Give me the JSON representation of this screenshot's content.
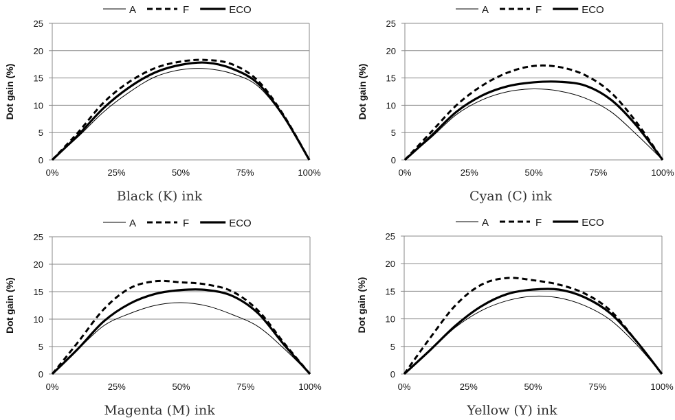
{
  "chart_data": [
    {
      "type": "line",
      "title": "Black (K) ink",
      "xlabel": "",
      "ylabel": "Dot gain (%)",
      "ylim": [
        0,
        25
      ],
      "yticks": [
        "0",
        "5",
        "10",
        "15",
        "20",
        "25"
      ],
      "xticks": [
        "0%",
        "25%",
        "50%",
        "75%",
        "100%"
      ],
      "x": [
        0,
        10,
        20,
        30,
        40,
        50,
        60,
        70,
        80,
        90,
        100
      ],
      "grid": true,
      "legend_position": "top-center",
      "series": [
        {
          "name": "A",
          "values": [
            0,
            4.2,
            8.8,
            12.4,
            15.2,
            16.5,
            16.7,
            15.8,
            13.5,
            7.8,
            0
          ]
        },
        {
          "name": "F",
          "values": [
            0,
            5.0,
            10.5,
            14.3,
            16.8,
            18.0,
            18.3,
            17.5,
            14.5,
            8.2,
            0
          ]
        },
        {
          "name": "ECO",
          "values": [
            0,
            4.5,
            9.5,
            13.3,
            16.0,
            17.4,
            17.8,
            16.7,
            14.0,
            8.0,
            0
          ]
        }
      ]
    },
    {
      "type": "line",
      "title": "Cyan (C) ink",
      "xlabel": "",
      "ylabel": "Dot gain (%)",
      "ylim": [
        0,
        25
      ],
      "yticks": [
        "0",
        "5",
        "10",
        "15",
        "20",
        "25"
      ],
      "xticks": [
        "0%",
        "25%",
        "50%",
        "75%",
        "100%"
      ],
      "x": [
        0,
        10,
        20,
        30,
        40,
        50,
        60,
        70,
        80,
        90,
        100
      ],
      "grid": true,
      "legend_position": "top-center",
      "series": [
        {
          "name": "A",
          "values": [
            0,
            4.0,
            8.3,
            11.0,
            12.5,
            13.0,
            12.6,
            11.3,
            8.8,
            4.6,
            0
          ]
        },
        {
          "name": "F",
          "values": [
            0,
            5.0,
            10.0,
            13.6,
            16.0,
            17.2,
            17.0,
            15.5,
            12.3,
            6.8,
            0
          ]
        },
        {
          "name": "ECO",
          "values": [
            0,
            4.3,
            8.8,
            11.8,
            13.5,
            14.2,
            14.3,
            13.6,
            11.0,
            6.2,
            0
          ]
        }
      ]
    },
    {
      "type": "line",
      "title": "Magenta (M) ink",
      "xlabel": "",
      "ylabel": "Dot gain (%)",
      "ylim": [
        0,
        25
      ],
      "yticks": [
        "0",
        "5",
        "10",
        "15",
        "20",
        "25"
      ],
      "xticks": [
        "0%",
        "25%",
        "50%",
        "75%",
        "100%"
      ],
      "x": [
        0,
        10,
        20,
        30,
        40,
        50,
        60,
        70,
        80,
        90,
        100
      ],
      "grid": true,
      "legend_position": "top-center",
      "series": [
        {
          "name": "A",
          "values": [
            0,
            4.5,
            8.8,
            11.0,
            12.5,
            13.0,
            12.4,
            10.8,
            8.6,
            4.6,
            0
          ]
        },
        {
          "name": "F",
          "values": [
            0,
            5.8,
            11.8,
            15.6,
            16.9,
            16.7,
            16.3,
            15.0,
            11.5,
            5.6,
            0
          ]
        },
        {
          "name": "ECO",
          "values": [
            0,
            4.6,
            9.6,
            12.8,
            14.6,
            15.3,
            15.3,
            14.2,
            11.0,
            5.3,
            0
          ]
        }
      ]
    },
    {
      "type": "line",
      "title": "Yellow (Y) ink",
      "xlabel": "",
      "ylabel": "Dot gain (%)",
      "ylim": [
        0,
        25
      ],
      "yticks": [
        "0",
        "5",
        "10",
        "15",
        "20",
        "25"
      ],
      "xticks": [
        "0%",
        "25%",
        "50%",
        "75%",
        "100%"
      ],
      "x": [
        0,
        10,
        20,
        30,
        40,
        50,
        60,
        70,
        80,
        90,
        100
      ],
      "grid": true,
      "legend_position": "top-center",
      "series": [
        {
          "name": "A",
          "values": [
            0,
            4.2,
            8.5,
            11.5,
            13.3,
            14.1,
            13.8,
            12.4,
            9.8,
            5.4,
            0
          ]
        },
        {
          "name": "F",
          "values": [
            0,
            6.5,
            12.5,
            16.2,
            17.4,
            17.0,
            16.2,
            14.6,
            11.5,
            6.0,
            0
          ]
        },
        {
          "name": "ECO",
          "values": [
            0,
            4.3,
            8.8,
            12.3,
            14.5,
            15.3,
            15.3,
            13.9,
            11.0,
            6.0,
            0
          ]
        }
      ]
    }
  ],
  "styles": {
    "line_color": "#000000",
    "grid_color": "#888888",
    "title_color": "#333333"
  }
}
